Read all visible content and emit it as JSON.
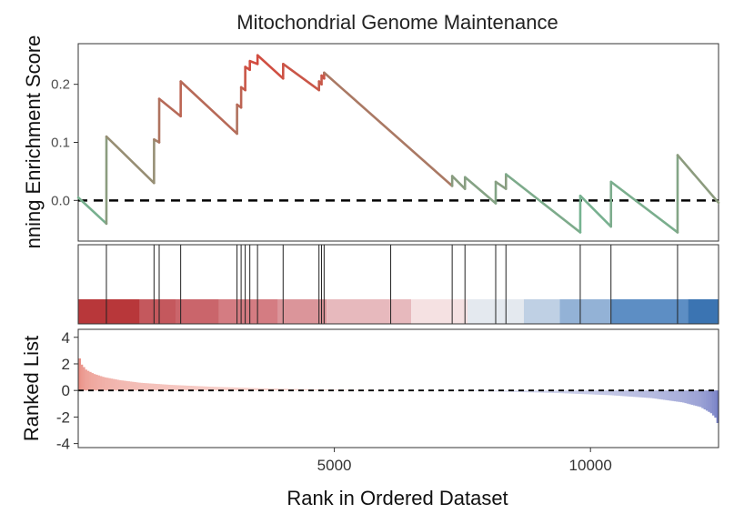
{
  "chart_data": {
    "type": "line",
    "title": "Mitochondrial Genome Maintenance",
    "x_range": [
      0,
      12500
    ],
    "panels": [
      {
        "name": "running-enrichment-score",
        "ylabel": "nning Enrichment Score",
        "ylim": [
          -0.07,
          0.27
        ],
        "yticks": [
          0.0,
          0.1,
          0.2
        ],
        "ytick_labels": [
          "0.0",
          "0.1",
          "0.2"
        ],
        "zero_line": true,
        "line_color_high": "#d7473c",
        "line_color_low": "#6bbf9b",
        "es_curve": [
          [
            0,
            0.005
          ],
          [
            550,
            -0.04
          ],
          [
            551,
            0.11
          ],
          [
            1480,
            0.03
          ],
          [
            1481,
            0.105
          ],
          [
            1580,
            0.1
          ],
          [
            1581,
            0.175
          ],
          [
            2000,
            0.145
          ],
          [
            2001,
            0.205
          ],
          [
            3100,
            0.115
          ],
          [
            3101,
            0.165
          ],
          [
            3180,
            0.16
          ],
          [
            3181,
            0.195
          ],
          [
            3260,
            0.19
          ],
          [
            3261,
            0.23
          ],
          [
            3350,
            0.225
          ],
          [
            3351,
            0.24
          ],
          [
            3500,
            0.235
          ],
          [
            3501,
            0.25
          ],
          [
            4000,
            0.21
          ],
          [
            4001,
            0.235
          ],
          [
            4700,
            0.19
          ],
          [
            4701,
            0.205
          ],
          [
            4750,
            0.2
          ],
          [
            4751,
            0.215
          ],
          [
            4800,
            0.21
          ],
          [
            4801,
            0.22
          ],
          [
            7300,
            0.025
          ],
          [
            7301,
            0.042
          ],
          [
            7550,
            0.02
          ],
          [
            7551,
            0.04
          ],
          [
            8150,
            -0.005
          ],
          [
            8151,
            0.032
          ],
          [
            8350,
            0.02
          ],
          [
            8351,
            0.045
          ],
          [
            9800,
            -0.055
          ],
          [
            9801,
            0.008
          ],
          [
            10400,
            -0.045
          ],
          [
            10401,
            0.032
          ],
          [
            11700,
            -0.055
          ],
          [
            11701,
            0.078
          ],
          [
            12500,
            -0.004
          ]
        ]
      },
      {
        "name": "hit-rug",
        "hits": [
          550,
          1480,
          1580,
          2000,
          3100,
          3180,
          3260,
          3350,
          3500,
          4000,
          4700,
          4750,
          4800,
          6100,
          7300,
          7550,
          8150,
          8350,
          9800,
          10400,
          11700
        ],
        "color_bins": [
          {
            "from": 0,
            "to": 1200,
            "color": "#b8373a"
          },
          {
            "from": 1200,
            "to": 1900,
            "color": "#c4585d"
          },
          {
            "from": 1900,
            "to": 2750,
            "color": "#ca656b"
          },
          {
            "from": 2750,
            "to": 3900,
            "color": "#d47c82"
          },
          {
            "from": 3900,
            "to": 4850,
            "color": "#db959a"
          },
          {
            "from": 4850,
            "to": 6500,
            "color": "#e7b9bd"
          },
          {
            "from": 6500,
            "to": 7600,
            "color": "#f5e1e2"
          },
          {
            "from": 7600,
            "to": 8700,
            "color": "#e4e9ef"
          },
          {
            "from": 8700,
            "to": 9400,
            "color": "#bfd0e4"
          },
          {
            "from": 9400,
            "to": 10400,
            "color": "#93b2d6"
          },
          {
            "from": 10400,
            "to": 11900,
            "color": "#5d8ec4"
          },
          {
            "from": 11900,
            "to": 12500,
            "color": "#3b74b2"
          }
        ]
      },
      {
        "name": "ranked-list",
        "type": "area",
        "ylabel": "Ranked List",
        "ylim": [
          -4.3,
          4.6
        ],
        "yticks": [
          -4,
          -2,
          0,
          2,
          4
        ],
        "ytick_labels": [
          "-4",
          "-2",
          "0",
          "2",
          "4"
        ],
        "zero_line": true,
        "positive_color": "#e8877c",
        "negative_color": "#6e78c2",
        "metric_curve": [
          [
            0,
            2.7
          ],
          [
            50,
            2.0
          ],
          [
            150,
            1.55
          ],
          [
            300,
            1.25
          ],
          [
            500,
            1.0
          ],
          [
            800,
            0.78
          ],
          [
            1200,
            0.58
          ],
          [
            1800,
            0.42
          ],
          [
            2600,
            0.28
          ],
          [
            3600,
            0.16
          ],
          [
            4800,
            0.07
          ],
          [
            6000,
            0.02
          ],
          [
            7000,
            -0.02
          ],
          [
            8200,
            -0.08
          ],
          [
            9400,
            -0.2
          ],
          [
            10400,
            -0.36
          ],
          [
            11200,
            -0.58
          ],
          [
            11800,
            -0.9
          ],
          [
            12150,
            -1.25
          ],
          [
            12350,
            -1.7
          ],
          [
            12450,
            -2.1
          ],
          [
            12500,
            -2.7
          ]
        ]
      }
    ],
    "xticks": [
      5000,
      10000
    ],
    "xtick_labels": [
      "5000",
      "10000"
    ],
    "xlabel": "Rank in Ordered Dataset"
  }
}
